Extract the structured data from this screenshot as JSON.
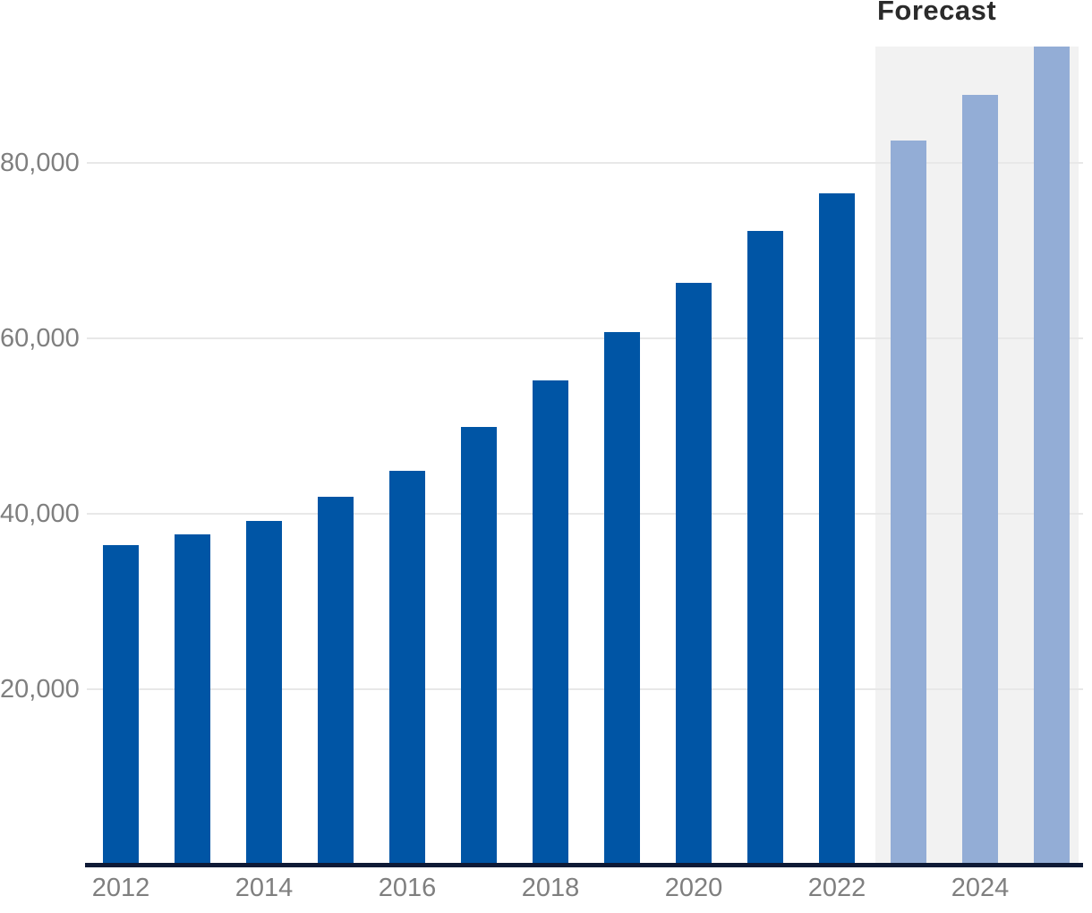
{
  "chart_data": {
    "type": "bar",
    "title": "",
    "annotation": "Forecast",
    "x": [
      2012,
      2013,
      2014,
      2015,
      2016,
      2017,
      2018,
      2019,
      2020,
      2021,
      2022,
      2023,
      2024,
      2025
    ],
    "values": [
      36400,
      37700,
      39200,
      41900,
      44900,
      49900,
      55200,
      60700,
      66300,
      72200,
      76500,
      82600,
      87800,
      93300
    ],
    "forecast_from_year": 2023,
    "ylim": [
      0,
      95000
    ],
    "yticks": [
      {
        "value": 20000,
        "label": "20,000"
      },
      {
        "value": 40000,
        "label": "40,000"
      },
      {
        "value": 60000,
        "label": "60,000"
      },
      {
        "value": 80000,
        "label": "80,000"
      }
    ],
    "xticks": [
      {
        "year": 2012,
        "label": "2012"
      },
      {
        "year": 2014,
        "label": "2014"
      },
      {
        "year": 2016,
        "label": "2016"
      },
      {
        "year": 2018,
        "label": "2018"
      },
      {
        "year": 2020,
        "label": "2020"
      },
      {
        "year": 2022,
        "label": "2022"
      },
      {
        "year": 2024,
        "label": "2024"
      }
    ],
    "grid": true,
    "legend_position": "none",
    "colors": {
      "historical_bar": "#0055a5",
      "forecast_bar": "#93add6",
      "forecast_band": "#f2f2f2",
      "gridline": "#e8e8e8",
      "axis_line": "#0e1a36",
      "tick_label": "#7f7f7f",
      "annotation_text": "#2b2b2b"
    }
  }
}
